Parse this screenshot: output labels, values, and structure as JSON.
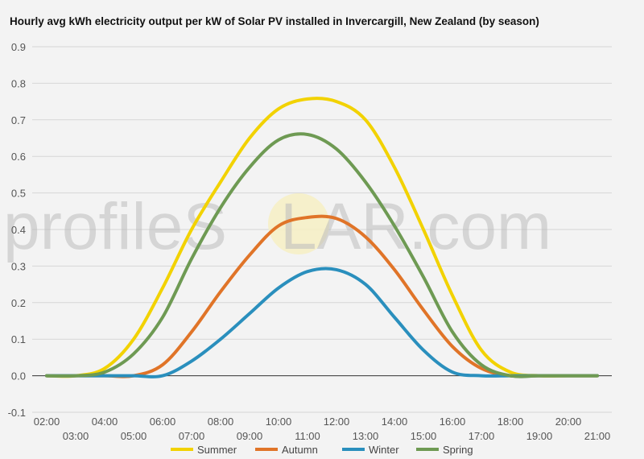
{
  "chart_data": {
    "type": "line",
    "title": "Hourly avg kWh electricity output per kW of Solar PV installed in Invercargill, New Zealand (by season)",
    "watermark": {
      "part1": "profileS",
      "part2": "LAR.com"
    },
    "ylim": [
      -0.1,
      0.9
    ],
    "yticks": [
      "-0.1",
      "0.0",
      "0.1",
      "0.2",
      "0.3",
      "0.4",
      "0.5",
      "0.6",
      "0.7",
      "0.8",
      "0.9"
    ],
    "xticks": [
      "02:00",
      "03:00",
      "04:00",
      "05:00",
      "06:00",
      "07:00",
      "08:00",
      "09:00",
      "10:00",
      "11:00",
      "12:00",
      "13:00",
      "14:00",
      "15:00",
      "16:00",
      "17:00",
      "18:00",
      "19:00",
      "20:00",
      "21:00"
    ],
    "x": [
      2,
      3,
      4,
      5,
      6,
      7,
      8,
      9,
      10,
      11,
      12,
      13,
      14,
      15,
      16,
      17,
      18,
      19,
      20,
      21
    ],
    "grid": true,
    "legend_position": "bottom",
    "series": [
      {
        "name": "Summer",
        "color": "#f2d200",
        "values": [
          0.0,
          0.0,
          0.02,
          0.1,
          0.24,
          0.4,
          0.53,
          0.65,
          0.73,
          0.757,
          0.75,
          0.7,
          0.57,
          0.4,
          0.22,
          0.07,
          0.01,
          0.0,
          0.0,
          0.0
        ]
      },
      {
        "name": "Autumn",
        "color": "#e07428",
        "values": [
          0.0,
          0.0,
          0.0,
          0.0,
          0.03,
          0.12,
          0.23,
          0.33,
          0.41,
          0.433,
          0.43,
          0.38,
          0.29,
          0.18,
          0.08,
          0.02,
          0.0,
          0.0,
          0.0,
          0.0
        ]
      },
      {
        "name": "Winter",
        "color": "#2a8fbd",
        "values": [
          0.0,
          0.0,
          0.0,
          0.0,
          0.0,
          0.04,
          0.1,
          0.17,
          0.24,
          0.285,
          0.29,
          0.25,
          0.16,
          0.07,
          0.01,
          0.0,
          0.0,
          0.0,
          0.0,
          0.0
        ]
      },
      {
        "name": "Spring",
        "color": "#6e9a53",
        "values": [
          0.0,
          0.0,
          0.01,
          0.06,
          0.16,
          0.32,
          0.46,
          0.57,
          0.645,
          0.66,
          0.62,
          0.53,
          0.41,
          0.27,
          0.12,
          0.03,
          0.0,
          0.0,
          0.0,
          0.0
        ]
      }
    ]
  }
}
